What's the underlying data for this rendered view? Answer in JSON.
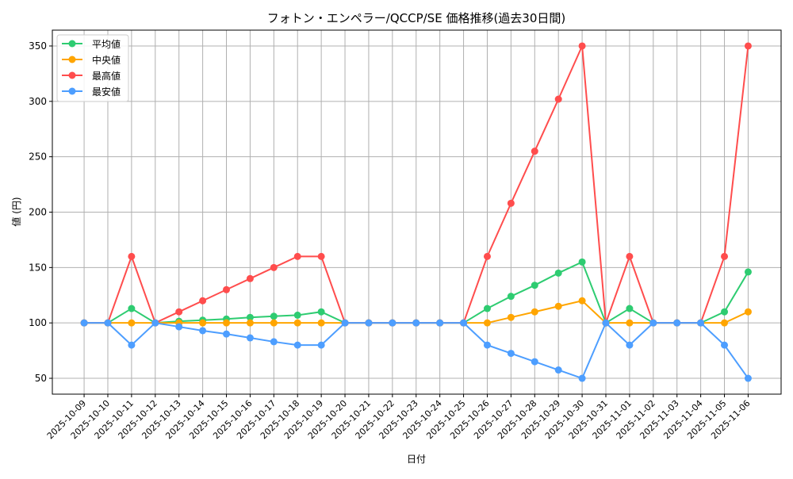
{
  "chart_data": {
    "type": "line",
    "title": "フォトン・エンペラー/QCCP/SE 価格推移(過去30日間)",
    "xlabel": "日付",
    "ylabel": "値 (円)",
    "ylim": [
      35.7,
      364.3
    ],
    "yticks": [
      50,
      100,
      150,
      200,
      250,
      300,
      350
    ],
    "grid": true,
    "legend_position": "top-left",
    "x": [
      "2025-10-09",
      "2025-10-10",
      "2025-10-11",
      "2025-10-12",
      "2025-10-13",
      "2025-10-14",
      "2025-10-15",
      "2025-10-16",
      "2025-10-17",
      "2025-10-18",
      "2025-10-19",
      "2025-10-20",
      "2025-10-21",
      "2025-10-22",
      "2025-10-23",
      "2025-10-24",
      "2025-10-25",
      "2025-10-26",
      "2025-10-27",
      "2025-10-28",
      "2025-10-29",
      "2025-10-30",
      "2025-10-31",
      "2025-11-01",
      "2025-11-02",
      "2025-11-03",
      "2025-11-04",
      "2025-11-05",
      "2025-11-06"
    ],
    "series": [
      {
        "name": "平均値",
        "color": "#2ecc71",
        "values": [
          100,
          100,
          113,
          100,
          101.5,
          102.5,
          103.5,
          105,
          106,
          107,
          110,
          100,
          100,
          100,
          100,
          100,
          100,
          113,
          124,
          134,
          145,
          155,
          100,
          113,
          100,
          100,
          100,
          110,
          146
        ]
      },
      {
        "name": "中央値",
        "color": "#ffa500",
        "values": [
          100,
          100,
          100,
          100,
          100,
          100,
          100,
          100,
          100,
          100,
          100,
          100,
          100,
          100,
          100,
          100,
          100,
          100,
          105,
          110,
          115,
          120,
          100,
          100,
          100,
          100,
          100,
          100,
          110
        ]
      },
      {
        "name": "最高値",
        "color": "#ff4d4d",
        "values": [
          100,
          100,
          160,
          100,
          110,
          120,
          130,
          140,
          150,
          160,
          160,
          100,
          100,
          100,
          100,
          100,
          100,
          160,
          208,
          255,
          302,
          350,
          100,
          160,
          100,
          100,
          100,
          160,
          350
        ]
      },
      {
        "name": "最安値",
        "color": "#4d9eff",
        "values": [
          100,
          100,
          80,
          100,
          96.5,
          93,
          90,
          86.5,
          83,
          80,
          80,
          100,
          100,
          100,
          100,
          100,
          100,
          80,
          72.5,
          65,
          57.5,
          50,
          100,
          80,
          100,
          100,
          100,
          80,
          50
        ]
      }
    ]
  }
}
